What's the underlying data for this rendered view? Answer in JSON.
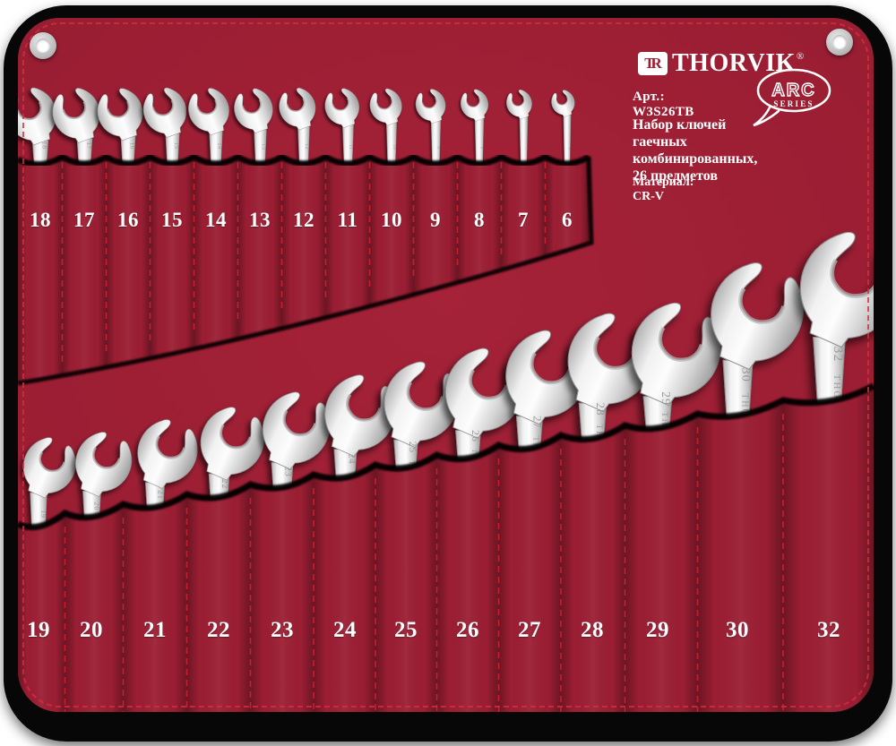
{
  "brand": {
    "mark": "TR",
    "name": "THORVIK",
    "registered": "®",
    "art": "Арт.: W3S26TB",
    "badge": {
      "title": "ARC",
      "subtitle": "SERIES"
    },
    "description_lines": [
      "Набор ключей гаечных",
      "комбинированных,",
      "26 предметов"
    ],
    "material": "Материал: CR-V"
  },
  "pockets": {
    "top_sizes": [
      "18",
      "17",
      "16",
      "15",
      "14",
      "13",
      "12",
      "11",
      "10",
      "9",
      "8",
      "7",
      "6"
    ],
    "bottom_sizes": [
      "19",
      "20",
      "21",
      "22",
      "23",
      "24",
      "25",
      "26",
      "27",
      "28",
      "29",
      "30",
      "32"
    ]
  },
  "colors": {
    "fabric": "#9b1e33",
    "fabric_dark": "#82192b",
    "stitch": "#d2202e",
    "metal_light": "#fdfdfd",
    "metal_dark": "#a3a3a3",
    "edge_shadow": "#050505",
    "label_text": "#ffffff",
    "stamp_text": "#8f8f8f"
  }
}
